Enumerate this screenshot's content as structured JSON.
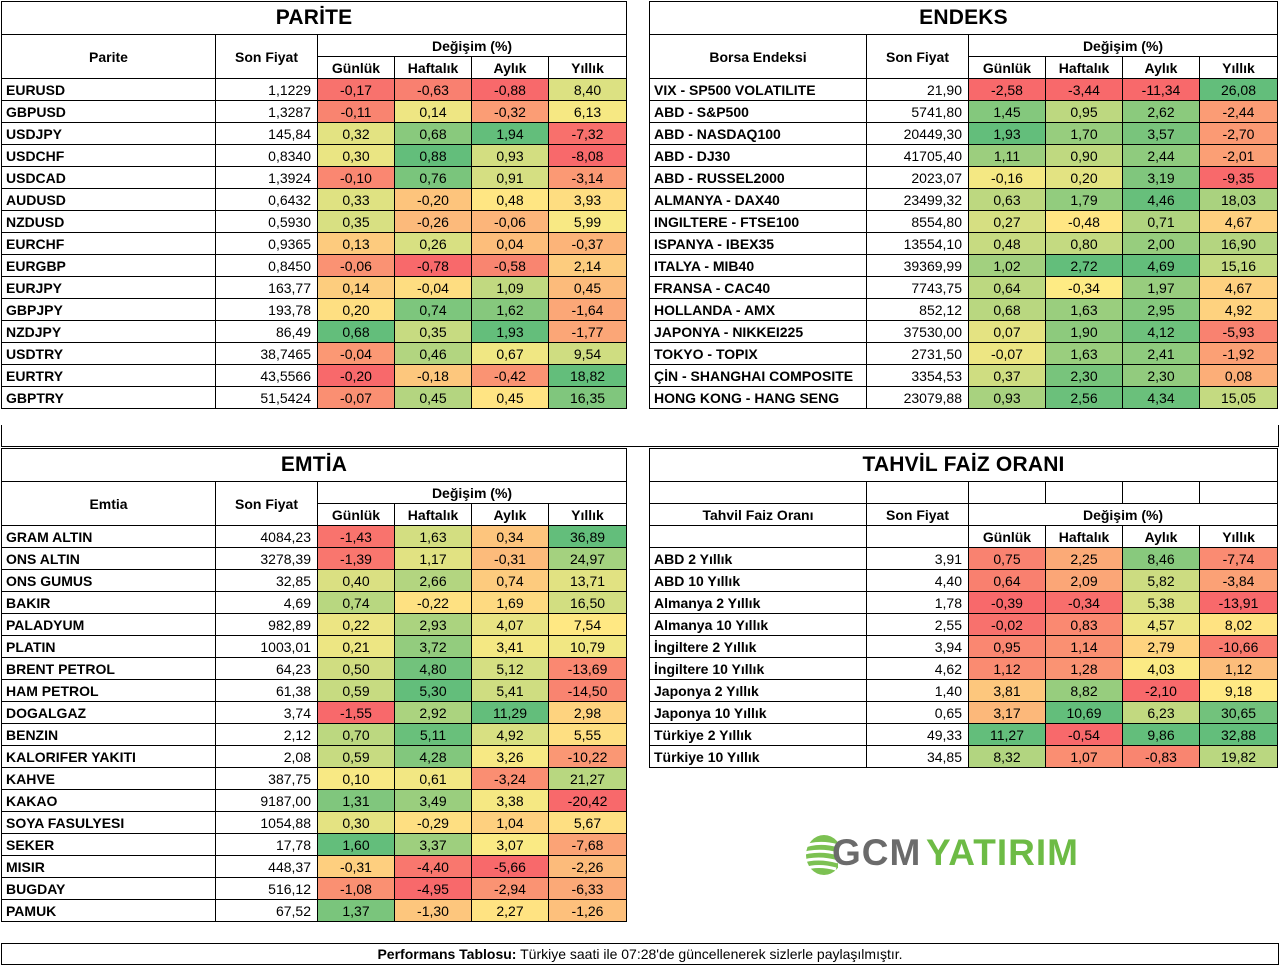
{
  "parite": {
    "title": "PARİTE",
    "col_name": "Parite",
    "col_price": "Son Fiyat",
    "col_change": "Değişim (%)",
    "col_daily": "Günlük",
    "col_weekly": "Haftalık",
    "col_monthly": "Aylık",
    "col_yearly": "Yıllık",
    "rows": [
      {
        "name": "EURUSD",
        "price": "1,1229",
        "d": "-0,17",
        "w": "-0,63",
        "m": "-0,88",
        "y": "8,40"
      },
      {
        "name": "GBPUSD",
        "price": "1,3287",
        "d": "-0,11",
        "w": "0,14",
        "m": "-0,32",
        "y": "6,13"
      },
      {
        "name": "USDJPY",
        "price": "145,84",
        "d": "0,32",
        "w": "0,68",
        "m": "1,94",
        "y": "-7,32"
      },
      {
        "name": "USDCHF",
        "price": "0,8340",
        "d": "0,30",
        "w": "0,88",
        "m": "0,93",
        "y": "-8,08"
      },
      {
        "name": "USDCAD",
        "price": "1,3924",
        "d": "-0,10",
        "w": "0,76",
        "m": "0,91",
        "y": "-3,14"
      },
      {
        "name": "AUDUSD",
        "price": "0,6432",
        "d": "0,33",
        "w": "-0,20",
        "m": "0,48",
        "y": "3,93"
      },
      {
        "name": "NZDUSD",
        "price": "0,5930",
        "d": "0,35",
        "w": "-0,26",
        "m": "-0,06",
        "y": "5,99"
      },
      {
        "name": "EURCHF",
        "price": "0,9365",
        "d": "0,13",
        "w": "0,26",
        "m": "0,04",
        "y": "-0,37"
      },
      {
        "name": "EURGBP",
        "price": "0,8450",
        "d": "-0,06",
        "w": "-0,78",
        "m": "-0,58",
        "y": "2,14"
      },
      {
        "name": "EURJPY",
        "price": "163,77",
        "d": "0,14",
        "w": "-0,04",
        "m": "1,09",
        "y": "0,45"
      },
      {
        "name": "GBPJPY",
        "price": "193,78",
        "d": "0,20",
        "w": "0,74",
        "m": "1,62",
        "y": "-1,64"
      },
      {
        "name": "NZDJPY",
        "price": "86,49",
        "d": "0,68",
        "w": "0,35",
        "m": "1,93",
        "y": "-1,77"
      },
      {
        "name": "USDTRY",
        "price": "38,7465",
        "d": "-0,04",
        "w": "0,46",
        "m": "0,67",
        "y": "9,54"
      },
      {
        "name": "EURTRY",
        "price": "43,5566",
        "d": "-0,20",
        "w": "-0,18",
        "m": "-0,42",
        "y": "18,82"
      },
      {
        "name": "GBPTRY",
        "price": "51,5424",
        "d": "-0,07",
        "w": "0,45",
        "m": "0,45",
        "y": "16,35"
      }
    ]
  },
  "endeks": {
    "title": "ENDEKS",
    "col_name": "Borsa Endeksi",
    "col_price": "Son Fiyat",
    "col_change": "Değişim (%)",
    "col_daily": "Günlük",
    "col_weekly": "Haftalık",
    "col_monthly": "Aylık",
    "col_yearly": "Yıllık",
    "rows": [
      {
        "name": "VIX  - SP500 VOLATILITE",
        "price": "21,90",
        "d": "-2,58",
        "w": "-3,44",
        "m": "-11,34",
        "y": "26,08"
      },
      {
        "name": "ABD - S&P500",
        "price": "5741,80",
        "d": "1,45",
        "w": "0,95",
        "m": "2,62",
        "y": "-2,44"
      },
      {
        "name": "ABD - NASDAQ100",
        "price": "20449,30",
        "d": "1,93",
        "w": "1,70",
        "m": "3,57",
        "y": "-2,70"
      },
      {
        "name": "ABD - DJ30",
        "price": "41705,40",
        "d": "1,11",
        "w": "0,90",
        "m": "2,44",
        "y": "-2,01"
      },
      {
        "name": "ABD - RUSSEL2000",
        "price": "2023,07",
        "d": "-0,16",
        "w": "0,20",
        "m": "3,19",
        "y": "-9,35"
      },
      {
        "name": "ALMANYA - DAX40",
        "price": "23499,32",
        "d": "0,63",
        "w": "1,79",
        "m": "4,46",
        "y": "18,03"
      },
      {
        "name": "INGILTERE - FTSE100",
        "price": "8554,80",
        "d": "0,27",
        "w": "-0,48",
        "m": "0,71",
        "y": "4,67"
      },
      {
        "name": "ISPANYA - IBEX35",
        "price": "13554,10",
        "d": "0,48",
        "w": "0,80",
        "m": "2,00",
        "y": "16,90"
      },
      {
        "name": "ITALYA - MIB40",
        "price": "39369,99",
        "d": "1,02",
        "w": "2,72",
        "m": "4,69",
        "y": "15,16"
      },
      {
        "name": "FRANSA - CAC40",
        "price": "7743,75",
        "d": "0,64",
        "w": "-0,34",
        "m": "1,97",
        "y": "4,67"
      },
      {
        "name": "HOLLANDA - AMX",
        "price": "852,12",
        "d": "0,68",
        "w": "1,63",
        "m": "2,95",
        "y": "4,92"
      },
      {
        "name": "JAPONYA - NIKKEI225",
        "price": "37530,00",
        "d": "0,07",
        "w": "1,90",
        "m": "4,12",
        "y": "-5,93"
      },
      {
        "name": "TOKYO - TOPIX",
        "price": "2731,50",
        "d": "-0,07",
        "w": "1,63",
        "m": "2,41",
        "y": "-1,92"
      },
      {
        "name": "ÇİN - SHANGHAI COMPOSITE",
        "price": "3354,53",
        "d": "0,37",
        "w": "2,30",
        "m": "2,30",
        "y": "0,08"
      },
      {
        "name": "HONG KONG - HANG SENG",
        "price": "23079,88",
        "d": "0,93",
        "w": "2,56",
        "m": "4,34",
        "y": "15,05"
      }
    ]
  },
  "emtia": {
    "title": "EMTİA",
    "col_name": "Emtia",
    "col_price": "Son Fiyat",
    "col_change": "Değişim (%)",
    "col_daily": "Günlük",
    "col_weekly": "Haftalık",
    "col_monthly": "Aylık",
    "col_yearly": "Yıllık",
    "rows": [
      {
        "name": "GRAM ALTIN",
        "price": "4084,23",
        "d": "-1,43",
        "w": "1,63",
        "m": "0,34",
        "y": "36,89"
      },
      {
        "name": "ONS ALTIN",
        "price": "3278,39",
        "d": "-1,39",
        "w": "1,17",
        "m": "-0,31",
        "y": "24,97"
      },
      {
        "name": "ONS GUMUS",
        "price": "32,85",
        "d": "0,40",
        "w": "2,66",
        "m": "0,74",
        "y": "13,71"
      },
      {
        "name": "BAKIR",
        "price": "4,69",
        "d": "0,74",
        "w": "-0,22",
        "m": "1,69",
        "y": "16,50"
      },
      {
        "name": "PALADYUM",
        "price": "982,89",
        "d": "0,22",
        "w": "2,93",
        "m": "4,07",
        "y": "7,54"
      },
      {
        "name": "PLATIN",
        "price": "1003,01",
        "d": "0,21",
        "w": "3,72",
        "m": "3,41",
        "y": "10,79"
      },
      {
        "name": "BRENT PETROL",
        "price": "64,23",
        "d": "0,50",
        "w": "4,80",
        "m": "5,12",
        "y": "-13,69"
      },
      {
        "name": "HAM PETROL",
        "price": "61,38",
        "d": "0,59",
        "w": "5,30",
        "m": "5,41",
        "y": "-14,50"
      },
      {
        "name": "DOGALGAZ",
        "price": "3,74",
        "d": "-1,55",
        "w": "2,92",
        "m": "11,29",
        "y": "2,98"
      },
      {
        "name": "BENZIN",
        "price": "2,12",
        "d": "0,70",
        "w": "5,11",
        "m": "4,92",
        "y": "5,55"
      },
      {
        "name": "KALORIFER YAKITI",
        "price": "2,08",
        "d": "0,59",
        "w": "4,28",
        "m": "3,26",
        "y": "-10,22"
      },
      {
        "name": "KAHVE",
        "price": "387,75",
        "d": "0,10",
        "w": "0,61",
        "m": "-3,24",
        "y": "21,27"
      },
      {
        "name": "KAKAO",
        "price": "9187,00",
        "d": "1,31",
        "w": "3,49",
        "m": "3,38",
        "y": "-20,42"
      },
      {
        "name": "SOYA FASULYESI",
        "price": "1054,88",
        "d": "0,30",
        "w": "-0,29",
        "m": "1,04",
        "y": "5,67"
      },
      {
        "name": "SEKER",
        "price": "17,78",
        "d": "1,60",
        "w": "3,37",
        "m": "3,07",
        "y": "-7,68"
      },
      {
        "name": "MISIR",
        "price": "448,37",
        "d": "-0,31",
        "w": "-4,40",
        "m": "-5,66",
        "y": "-2,26"
      },
      {
        "name": "BUGDAY",
        "price": "516,12",
        "d": "-1,08",
        "w": "-4,95",
        "m": "-2,94",
        "y": "-6,33"
      },
      {
        "name": "PAMUK",
        "price": "67,52",
        "d": "1,37",
        "w": "-1,30",
        "m": "2,27",
        "y": "-1,26"
      }
    ]
  },
  "tahvil": {
    "title": "TAHVİL FAİZ ORANI",
    "col_name": "Tahvil Faiz Oranı",
    "col_price": "Son Fiyat",
    "col_change": "Değişim (%)",
    "col_daily": "Günlük",
    "col_weekly": "Haftalık",
    "col_monthly": "Aylık",
    "col_yearly": "Yıllık",
    "rows": [
      {
        "name": "ABD 2 Yıllık",
        "price": "3,91",
        "d": "0,75",
        "w": "2,25",
        "m": "8,46",
        "y": "-7,74"
      },
      {
        "name": "ABD 10 Yıllık",
        "price": "4,40",
        "d": "0,64",
        "w": "2,09",
        "m": "5,82",
        "y": "-3,84"
      },
      {
        "name": "Almanya 2 Yıllık",
        "price": "1,78",
        "d": "-0,39",
        "w": "-0,34",
        "m": "5,38",
        "y": "-13,91"
      },
      {
        "name": "Almanya 10 Yıllık",
        "price": "2,55",
        "d": "-0,02",
        "w": "0,83",
        "m": "4,57",
        "y": "8,02"
      },
      {
        "name": "İngiltere 2 Yıllık",
        "price": "3,94",
        "d": "0,95",
        "w": "1,14",
        "m": "2,79",
        "y": "-10,66"
      },
      {
        "name": "İngiltere 10 Yıllık",
        "price": "4,62",
        "d": "1,12",
        "w": "1,28",
        "m": "4,03",
        "y": "1,12"
      },
      {
        "name": "Japonya 2 Yıllık",
        "price": "1,40",
        "d": "3,81",
        "w": "8,82",
        "m": "-2,10",
        "y": "9,18"
      },
      {
        "name": "Japonya 10 Yıllık",
        "price": "0,65",
        "d": "3,17",
        "w": "10,69",
        "m": "6,23",
        "y": "30,65"
      },
      {
        "name": "Türkiye 2 Yıllık",
        "price": "49,33",
        "d": "11,27",
        "w": "-0,54",
        "m": "9,86",
        "y": "32,88"
      },
      {
        "name": "Türkiye 10 Yıllık",
        "price": "34,85",
        "d": "8,32",
        "w": "1,07",
        "m": "-0,83",
        "y": "19,82"
      }
    ]
  },
  "colors": {
    "red": "#f8696b",
    "orange": "#fba977",
    "yellow": "#ffeb84",
    "lightgreen": "#c6db81",
    "green": "#63be7b"
  },
  "logo": {
    "part1": "GCM",
    "part2": "YATIRIM",
    "icon": "globe-swoosh-icon"
  },
  "footer": {
    "bold": "Performans Tablosu:",
    "text": " Türkiye saati ile 07:28'de güncellenerek sizlerle paylaşılmıştır."
  }
}
